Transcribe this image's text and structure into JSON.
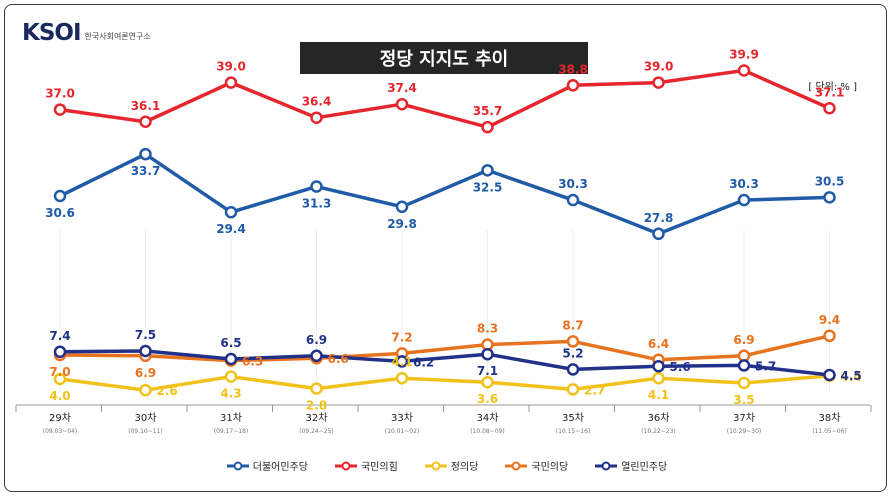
{
  "logo": {
    "mark": "KSOI",
    "subtitle": "한국사회여론연구소"
  },
  "title": "정당 지지도 추이",
  "unit": "[ 단위: % ]",
  "chart_data": {
    "type": "line",
    "title": "정당 지지도 추이",
    "unit": "%",
    "categories": [
      "29차",
      "30차",
      "31차",
      "32차",
      "33차",
      "34차",
      "35차",
      "36차",
      "37차",
      "38차"
    ],
    "dates": [
      "(09.03~04)",
      "(09.10~11)",
      "(09.17~18)",
      "(09.24~25)",
      "(10.01~02)",
      "(10.08~09)",
      "(10.15~16)",
      "(10.22~23)",
      "(10.29~30)",
      "(11.05~06)"
    ],
    "series": [
      {
        "name": "더불어민주당",
        "color": "#1f5ba6",
        "values": [
          30.6,
          33.7,
          29.4,
          31.3,
          29.8,
          32.5,
          30.3,
          27.8,
          30.3,
          30.5
        ],
        "labelpos": [
          "below",
          "below",
          "below",
          "below",
          "below",
          "below",
          "above",
          "above",
          "above",
          "above"
        ]
      },
      {
        "name": "국민의힘",
        "color": "#e5262d",
        "values": [
          37.0,
          36.1,
          39.0,
          36.4,
          37.4,
          35.7,
          38.8,
          39.0,
          39.9,
          37.1
        ],
        "labelpos": [
          "above",
          "above",
          "above",
          "above",
          "above",
          "above",
          "above",
          "above",
          "above",
          "above"
        ]
      },
      {
        "name": "정의당",
        "color": "#f2c21b",
        "values": [
          4.0,
          2.6,
          4.3,
          2.8,
          4.1,
          3.6,
          2.7,
          4.1,
          3.5,
          4.4
        ],
        "labelpos": [
          "below",
          "right",
          "below",
          "below",
          "above",
          "below",
          "right",
          "below",
          "below",
          "right"
        ]
      },
      {
        "name": "국민의당",
        "color": "#e8731f",
        "values": [
          7.0,
          6.9,
          6.3,
          6.6,
          7.2,
          8.3,
          8.7,
          6.4,
          6.9,
          9.4
        ],
        "labelpos": [
          "below",
          "below",
          "right",
          "right",
          "above",
          "above",
          "above",
          "above",
          "above",
          "above"
        ]
      },
      {
        "name": "열린민주당",
        "color": "#21318a",
        "values": [
          7.4,
          7.5,
          6.5,
          6.9,
          6.2,
          7.1,
          5.2,
          5.6,
          5.7,
          4.5
        ],
        "labelpos": [
          "above",
          "above",
          "above",
          "above",
          "right",
          "below",
          "above",
          "right",
          "right",
          "right"
        ]
      }
    ]
  }
}
